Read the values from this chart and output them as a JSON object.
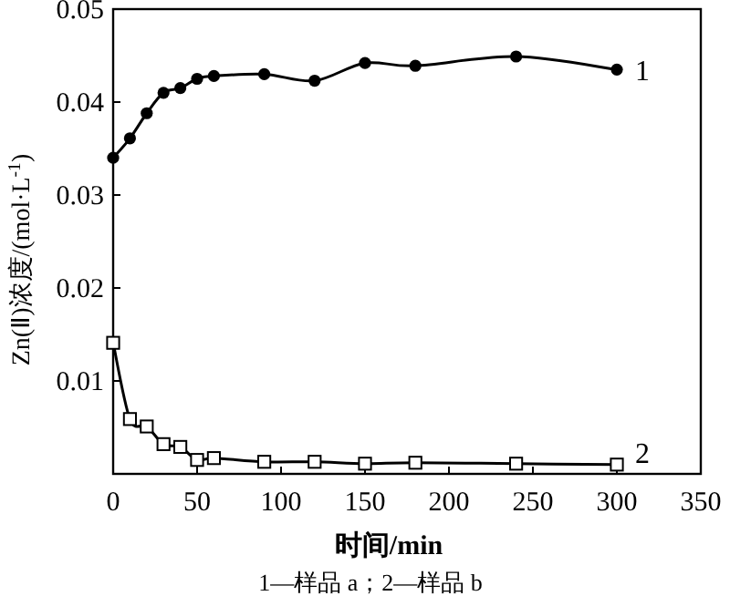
{
  "chart_data": {
    "type": "line",
    "xlabel": "时间/min",
    "ylabel": "Zn(Ⅱ)浓度/(mol·L$^{-1}$)",
    "x": [
      0,
      10,
      20,
      30,
      40,
      50,
      60,
      90,
      120,
      150,
      180,
      240,
      300
    ],
    "xlim": [
      0,
      350
    ],
    "ylim": [
      0,
      0.05
    ],
    "xticks": [
      0,
      50,
      100,
      150,
      200,
      250,
      300,
      350
    ],
    "yticks": [
      {
        "value": 0,
        "label": null
      },
      0.01,
      0.02,
      0.03,
      0.04,
      0.05
    ],
    "grid": false,
    "series": [
      {
        "name": "1",
        "color": "#000000",
        "marker": "circle",
        "values": [
          0.034,
          0.0361,
          0.0388,
          0.041,
          0.0415,
          0.0425,
          0.0428,
          0.043,
          0.0423,
          0.0442,
          0.0439,
          0.0449,
          0.0435
        ]
      },
      {
        "name": "2",
        "color": "#000000",
        "marker": "square",
        "values": [
          0.0141,
          0.0059,
          0.0051,
          0.0032,
          0.0029,
          0.0015,
          0.0017,
          0.0013,
          0.0013,
          0.0011,
          0.0012,
          0.0011,
          0.001
        ]
      }
    ],
    "annotations": [
      "1—样品 a；2—样品 b"
    ]
  }
}
